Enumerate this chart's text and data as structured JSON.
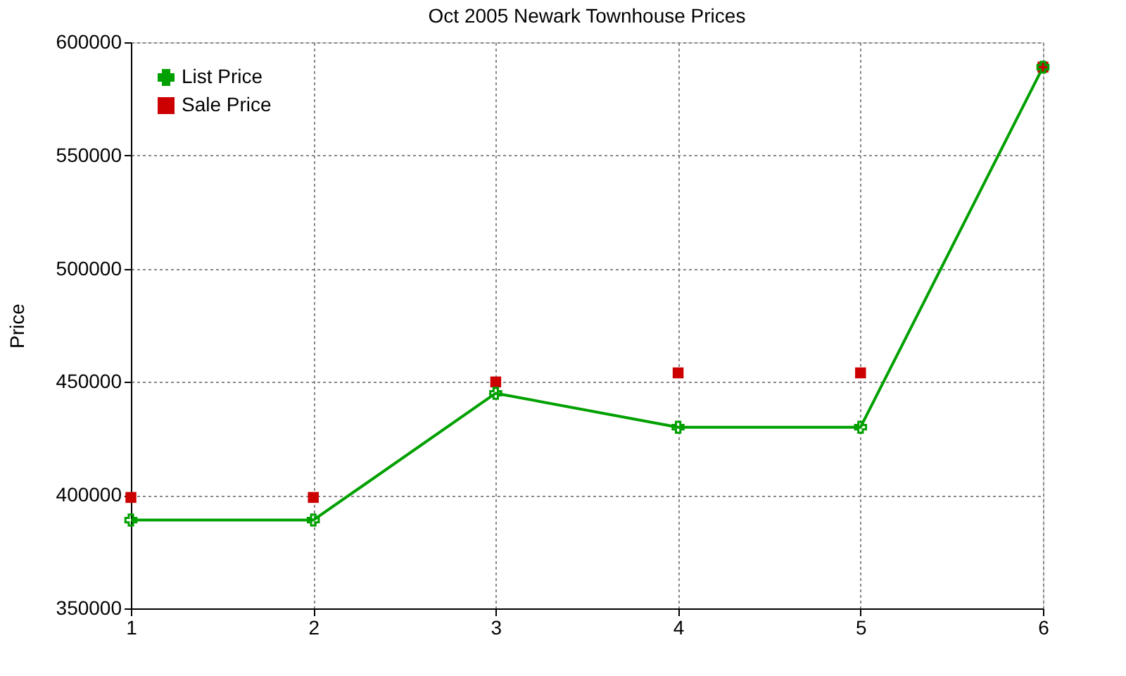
{
  "chart_data": {
    "type": "line",
    "title": "Oct 2005 Newark Townhouse Prices",
    "ylabel": "Price",
    "x": [
      1,
      2,
      3,
      4,
      5,
      6
    ],
    "series": [
      {
        "name": "List Price",
        "marker": "cross",
        "line_style": "solid",
        "color": "#00a000",
        "values": [
          389000,
          389000,
          445000,
          430000,
          430000,
          589000
        ]
      },
      {
        "name": "Sale Price",
        "type": "scatter",
        "marker": "square",
        "color": "#cc0000",
        "values": [
          399000,
          399000,
          450000,
          454000,
          454000,
          589000
        ]
      }
    ],
    "xlim": [
      1,
      6
    ],
    "xticks": [
      1,
      2,
      3,
      4,
      5,
      6
    ],
    "ylim": [
      350000,
      600000
    ],
    "yticks": [
      350000,
      400000,
      450000,
      500000,
      550000,
      600000
    ],
    "grid": true,
    "legend": "top left"
  }
}
